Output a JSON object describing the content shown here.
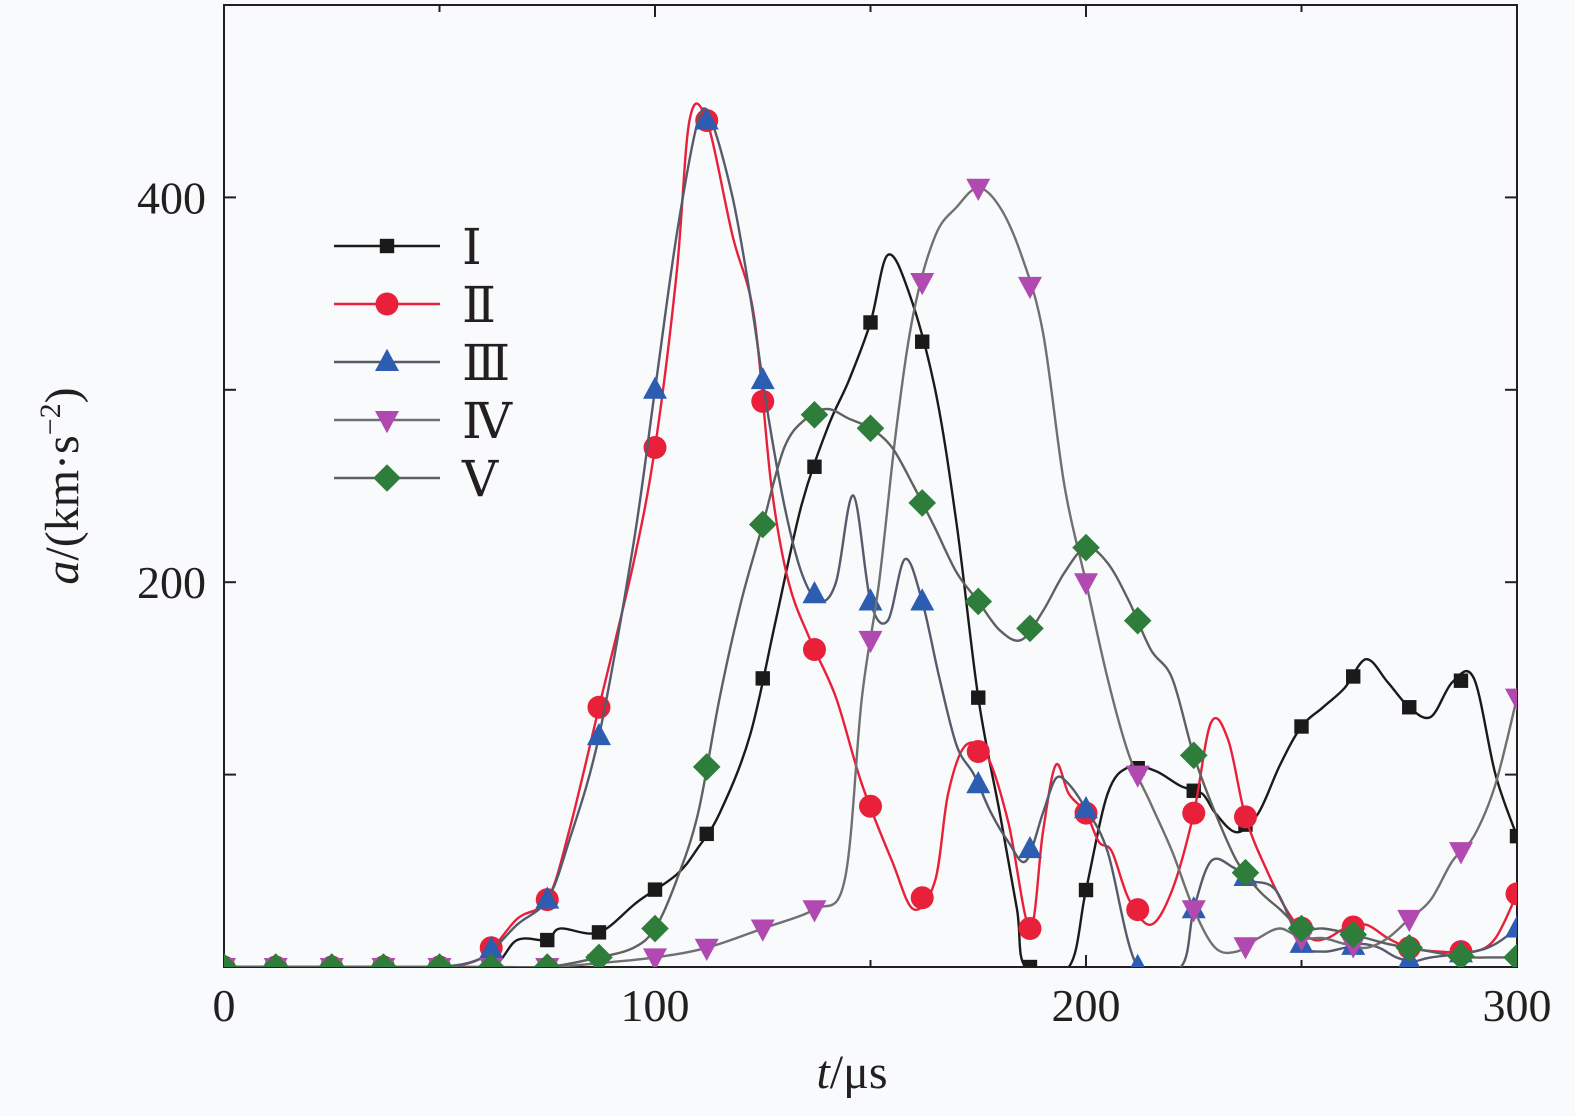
{
  "chart_data": {
    "type": "line",
    "title": "",
    "xlabel": {
      "var": "t",
      "unit": "/μs"
    },
    "ylabel": {
      "var": "a",
      "unit": "/(km·s",
      "exp": "−2",
      "close": ")"
    },
    "xlim": [
      0,
      300
    ],
    "ylim": [
      0,
      500
    ],
    "xticks": [
      0,
      100,
      200,
      300
    ],
    "yticks_labeled": [
      200,
      400
    ],
    "yticks_minor": [
      100,
      300
    ],
    "grid": false,
    "legend_position": "top-left",
    "series": [
      {
        "name": "Ⅰ",
        "color": "#1a1a1a",
        "marker": "square",
        "points": [
          [
            0,
            0
          ],
          [
            12,
            0
          ],
          [
            25,
            0
          ],
          [
            37,
            0
          ],
          [
            50,
            0
          ],
          [
            62,
            0
          ],
          [
            68,
            14
          ],
          [
            75,
            14
          ],
          [
            78,
            20
          ],
          [
            87,
            18
          ],
          [
            96,
            34
          ],
          [
            105,
            48
          ],
          [
            110,
            62
          ],
          [
            115,
            80
          ],
          [
            122,
            120
          ],
          [
            128,
            180
          ],
          [
            134,
            240
          ],
          [
            140,
            280
          ],
          [
            145,
            305
          ],
          [
            150,
            335
          ],
          [
            154,
            370
          ],
          [
            159,
            350
          ],
          [
            165,
            300
          ],
          [
            170,
            230
          ],
          [
            175,
            140
          ],
          [
            180,
            80
          ],
          [
            184,
            30
          ],
          [
            186,
            0
          ],
          [
            196,
            0
          ],
          [
            200,
            40
          ],
          [
            205,
            90
          ],
          [
            210,
            104
          ],
          [
            216,
            102
          ],
          [
            222,
            94
          ],
          [
            227,
            90
          ],
          [
            230,
            80
          ],
          [
            235,
            70
          ],
          [
            240,
            80
          ],
          [
            245,
            105
          ],
          [
            250,
            125
          ],
          [
            255,
            135
          ],
          [
            260,
            145
          ],
          [
            265,
            160
          ],
          [
            270,
            148
          ],
          [
            275,
            135
          ],
          [
            280,
            130
          ],
          [
            285,
            148
          ],
          [
            290,
            150
          ],
          [
            295,
            100
          ],
          [
            300,
            68
          ]
        ],
        "markers_at": [
          0,
          12,
          25,
          37,
          50,
          62,
          75,
          87,
          100,
          112,
          125,
          137,
          150,
          162,
          175,
          187,
          200,
          212,
          225,
          237,
          250,
          262,
          275,
          287,
          300
        ]
      },
      {
        "name": "Ⅱ",
        "color": "#e8203a",
        "marker": "circle",
        "points": [
          [
            0,
            0
          ],
          [
            12,
            0
          ],
          [
            25,
            0
          ],
          [
            37,
            0
          ],
          [
            50,
            0
          ],
          [
            60,
            5
          ],
          [
            68,
            25
          ],
          [
            75,
            35
          ],
          [
            80,
            70
          ],
          [
            87,
            135
          ],
          [
            95,
            210
          ],
          [
            100,
            270
          ],
          [
            105,
            360
          ],
          [
            108,
            440
          ],
          [
            112,
            440
          ],
          [
            118,
            380
          ],
          [
            123,
            338
          ],
          [
            127,
            250
          ],
          [
            131,
            200
          ],
          [
            136,
            170
          ],
          [
            142,
            140
          ],
          [
            148,
            95
          ],
          [
            155,
            55
          ],
          [
            160,
            30
          ],
          [
            165,
            45
          ],
          [
            168,
            90
          ],
          [
            172,
            115
          ],
          [
            177,
            110
          ],
          [
            182,
            75
          ],
          [
            187,
            20
          ],
          [
            190,
            70
          ],
          [
            193,
            105
          ],
          [
            196,
            90
          ],
          [
            200,
            80
          ],
          [
            203,
            65
          ],
          [
            206,
            60
          ],
          [
            210,
            35
          ],
          [
            215,
            22
          ],
          [
            220,
            40
          ],
          [
            225,
            80
          ],
          [
            229,
            127
          ],
          [
            233,
            118
          ],
          [
            237,
            78
          ],
          [
            242,
            50
          ],
          [
            247,
            28
          ],
          [
            252,
            15
          ],
          [
            256,
            15
          ],
          [
            260,
            20
          ],
          [
            265,
            22
          ],
          [
            270,
            15
          ],
          [
            275,
            10
          ],
          [
            282,
            8
          ],
          [
            290,
            8
          ],
          [
            295,
            15
          ],
          [
            300,
            38
          ]
        ],
        "markers_at": [
          0,
          12,
          25,
          37,
          50,
          62,
          75,
          87,
          100,
          112,
          125,
          137,
          150,
          162,
          175,
          187,
          200,
          212,
          225,
          237,
          250,
          262,
          275,
          287,
          300
        ]
      },
      {
        "name": "Ⅲ",
        "color": "#2c5db0",
        "marker": "triangle-up",
        "points": [
          [
            0,
            0
          ],
          [
            12,
            0
          ],
          [
            25,
            0
          ],
          [
            37,
            0
          ],
          [
            50,
            0
          ],
          [
            60,
            5
          ],
          [
            68,
            22
          ],
          [
            75,
            35
          ],
          [
            80,
            65
          ],
          [
            87,
            120
          ],
          [
            95,
            220
          ],
          [
            100,
            300
          ],
          [
            105,
            380
          ],
          [
            110,
            440
          ],
          [
            113,
            440
          ],
          [
            118,
            400
          ],
          [
            122,
            350
          ],
          [
            126,
            290
          ],
          [
            130,
            240
          ],
          [
            134,
            205
          ],
          [
            138,
            190
          ],
          [
            142,
            200
          ],
          [
            146,
            245
          ],
          [
            150,
            190
          ],
          [
            154,
            180
          ],
          [
            158,
            212
          ],
          [
            162,
            190
          ],
          [
            166,
            150
          ],
          [
            170,
            115
          ],
          [
            174,
            100
          ],
          [
            178,
            80
          ],
          [
            182,
            65
          ],
          [
            186,
            55
          ],
          [
            190,
            80
          ],
          [
            193,
            98
          ],
          [
            196,
            95
          ],
          [
            200,
            82
          ],
          [
            205,
            60
          ],
          [
            212,
            0
          ],
          [
            222,
            0
          ],
          [
            225,
            30
          ],
          [
            229,
            55
          ],
          [
            234,
            52
          ],
          [
            238,
            45
          ],
          [
            244,
            40
          ],
          [
            250,
            12
          ],
          [
            255,
            8
          ],
          [
            260,
            10
          ],
          [
            264,
            12
          ],
          [
            268,
            10
          ],
          [
            272,
            5
          ],
          [
            276,
            3
          ],
          [
            280,
            5
          ],
          [
            290,
            8
          ],
          [
            295,
            12
          ],
          [
            300,
            20
          ]
        ],
        "markers_at": [
          0,
          12,
          25,
          37,
          50,
          62,
          75,
          87,
          100,
          112,
          125,
          137,
          150,
          162,
          175,
          187,
          200,
          212,
          225,
          237,
          250,
          262,
          275,
          287,
          300
        ]
      },
      {
        "name": "Ⅳ",
        "color": "#b04ab0",
        "marker": "triangle-down",
        "points": [
          [
            0,
            0
          ],
          [
            12,
            0
          ],
          [
            25,
            0
          ],
          [
            37,
            0
          ],
          [
            50,
            0
          ],
          [
            62,
            0
          ],
          [
            75,
            0
          ],
          [
            87,
            2
          ],
          [
            100,
            5
          ],
          [
            112,
            10
          ],
          [
            125,
            20
          ],
          [
            137,
            30
          ],
          [
            144,
            45
          ],
          [
            148,
            140
          ],
          [
            152,
            200
          ],
          [
            156,
            280
          ],
          [
            160,
            340
          ],
          [
            165,
            380
          ],
          [
            170,
            395
          ],
          [
            175,
            405
          ],
          [
            180,
            395
          ],
          [
            185,
            370
          ],
          [
            190,
            330
          ],
          [
            195,
            250
          ],
          [
            200,
            200
          ],
          [
            205,
            150
          ],
          [
            210,
            110
          ],
          [
            215,
            85
          ],
          [
            220,
            60
          ],
          [
            225,
            30
          ],
          [
            230,
            10
          ],
          [
            235,
            8
          ],
          [
            240,
            15
          ],
          [
            245,
            20
          ],
          [
            250,
            15
          ],
          [
            255,
            15
          ],
          [
            260,
            12
          ],
          [
            265,
            10
          ],
          [
            270,
            15
          ],
          [
            275,
            25
          ],
          [
            280,
            35
          ],
          [
            285,
            55
          ],
          [
            290,
            68
          ],
          [
            295,
            95
          ],
          [
            300,
            140
          ]
        ],
        "markers_at": [
          0,
          12,
          25,
          37,
          50,
          62,
          75,
          87,
          100,
          112,
          125,
          137,
          150,
          162,
          175,
          187,
          200,
          212,
          225,
          237,
          250,
          262,
          275,
          287,
          300
        ]
      },
      {
        "name": "Ⅴ",
        "color": "#2f7d3a",
        "marker": "diamond",
        "points": [
          [
            0,
            0
          ],
          [
            12,
            0
          ],
          [
            25,
            0
          ],
          [
            37,
            0
          ],
          [
            50,
            0
          ],
          [
            62,
            0
          ],
          [
            75,
            0
          ],
          [
            87,
            5
          ],
          [
            95,
            10
          ],
          [
            100,
            20
          ],
          [
            105,
            45
          ],
          [
            110,
            80
          ],
          [
            115,
            140
          ],
          [
            120,
            190
          ],
          [
            125,
            230
          ],
          [
            130,
            270
          ],
          [
            135,
            285
          ],
          [
            140,
            290
          ],
          [
            145,
            285
          ],
          [
            150,
            280
          ],
          [
            155,
            270
          ],
          [
            160,
            250
          ],
          [
            165,
            228
          ],
          [
            170,
            205
          ],
          [
            175,
            190
          ],
          [
            180,
            175
          ],
          [
            185,
            170
          ],
          [
            190,
            185
          ],
          [
            195,
            205
          ],
          [
            200,
            218
          ],
          [
            205,
            210
          ],
          [
            210,
            190
          ],
          [
            215,
            165
          ],
          [
            220,
            150
          ],
          [
            225,
            110
          ],
          [
            230,
            80
          ],
          [
            235,
            55
          ],
          [
            240,
            40
          ],
          [
            245,
            30
          ],
          [
            250,
            20
          ],
          [
            255,
            20
          ],
          [
            260,
            18
          ],
          [
            265,
            15
          ],
          [
            270,
            12
          ],
          [
            275,
            10
          ],
          [
            280,
            8
          ],
          [
            285,
            6
          ],
          [
            290,
            5
          ],
          [
            295,
            5
          ],
          [
            300,
            5
          ]
        ],
        "markers_at": [
          0,
          12,
          25,
          37,
          50,
          62,
          75,
          87,
          100,
          112,
          125,
          137,
          150,
          162,
          175,
          187,
          200,
          212,
          225,
          237,
          250,
          262,
          275,
          287,
          300
        ]
      }
    ]
  }
}
